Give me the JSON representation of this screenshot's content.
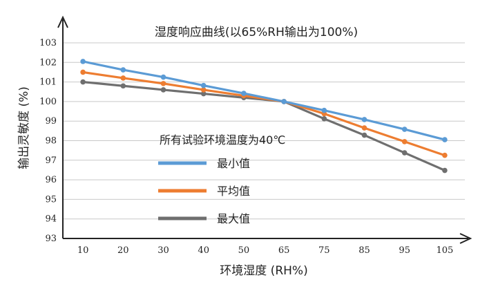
{
  "chart_data": {
    "type": "line",
    "title": "湿度响应曲线(以65%RH输出为100%)",
    "xlabel": "环境湿度 (RH%)",
    "ylabel": "输出灵敏度 (%)",
    "categories": [
      "10",
      "20",
      "30",
      "40",
      "50",
      "65",
      "75",
      "85",
      "95",
      "105"
    ],
    "ylim": [
      93,
      103
    ],
    "yticks": [
      "93",
      "94",
      "95",
      "96",
      "97",
      "98",
      "99",
      "100",
      "101",
      "102",
      "103"
    ],
    "grid": true,
    "legend_title": "所有试验环境温度为40℃",
    "series": [
      {
        "name": "最小值",
        "color": "#5b9bd5",
        "values": [
          102.05,
          101.62,
          101.25,
          100.82,
          100.42,
          100.0,
          99.55,
          99.08,
          98.58,
          98.05
        ]
      },
      {
        "name": "平均值",
        "color": "#ed7d31",
        "values": [
          101.5,
          101.2,
          100.92,
          100.6,
          100.3,
          100.0,
          99.38,
          98.65,
          97.95,
          97.25
        ]
      },
      {
        "name": "最大值",
        "color": "#6f6f6f",
        "values": [
          101.0,
          100.8,
          100.6,
          100.4,
          100.2,
          100.0,
          99.12,
          98.28,
          97.38,
          96.48
        ]
      }
    ]
  }
}
